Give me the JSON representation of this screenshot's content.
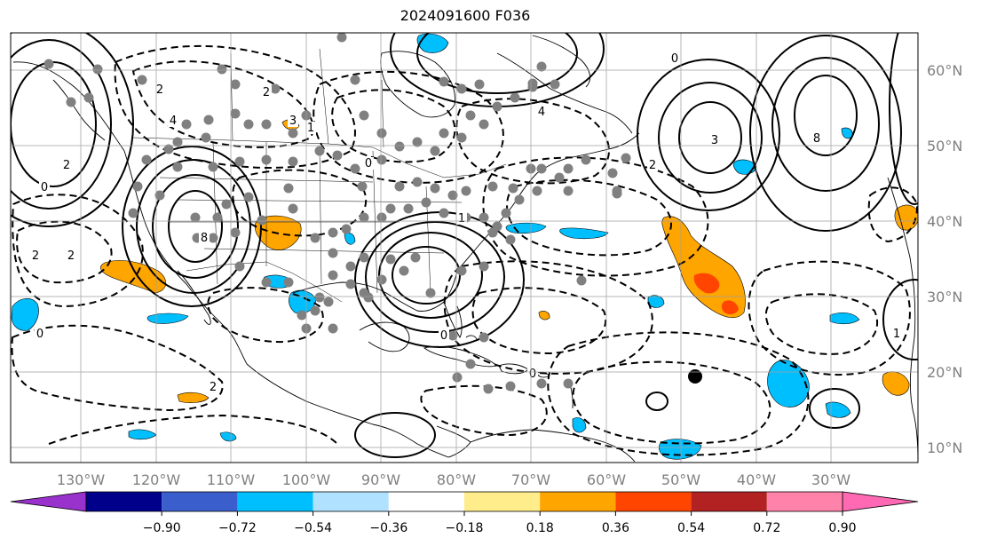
{
  "title": "2024091600 F036",
  "map": {
    "lon_ticks": [
      "130°W",
      "120°W",
      "110°W",
      "100°W",
      "90°W",
      "80°W",
      "70°W",
      "60°W",
      "50°W",
      "40°W",
      "30°W"
    ],
    "lat_ticks": [
      "60°N",
      "50°N",
      "40°N",
      "30°N",
      "20°N",
      "10°N"
    ],
    "grid": true,
    "contour_labels": [
      "0",
      "2",
      "2",
      "4",
      "8",
      "2",
      "3",
      "0",
      "1",
      "2",
      "2",
      "0",
      "0",
      "0",
      "4",
      "3",
      "8",
      "0",
      "2",
      "1",
      "1",
      "2"
    ],
    "colors": {
      "neg_strong": "#00bfff",
      "pos_mod": "#ffa500",
      "pos_strong": "#ff4500",
      "dots": "#808080",
      "marker": "#000000"
    }
  },
  "colorbar": {
    "labels": [
      "−0.90",
      "−0.72",
      "−0.54",
      "−0.36",
      "−0.18",
      "0.18",
      "0.36",
      "0.54",
      "0.72",
      "0.90"
    ],
    "colors": [
      "#9932cc",
      "#00008b",
      "#3a5fcd",
      "#00bfff",
      "#b0e2ff",
      "#ffffff",
      "#ffec8b",
      "#ffa500",
      "#ff4500",
      "#b22222",
      "#ff82ab",
      "#ff69b4"
    ]
  }
}
